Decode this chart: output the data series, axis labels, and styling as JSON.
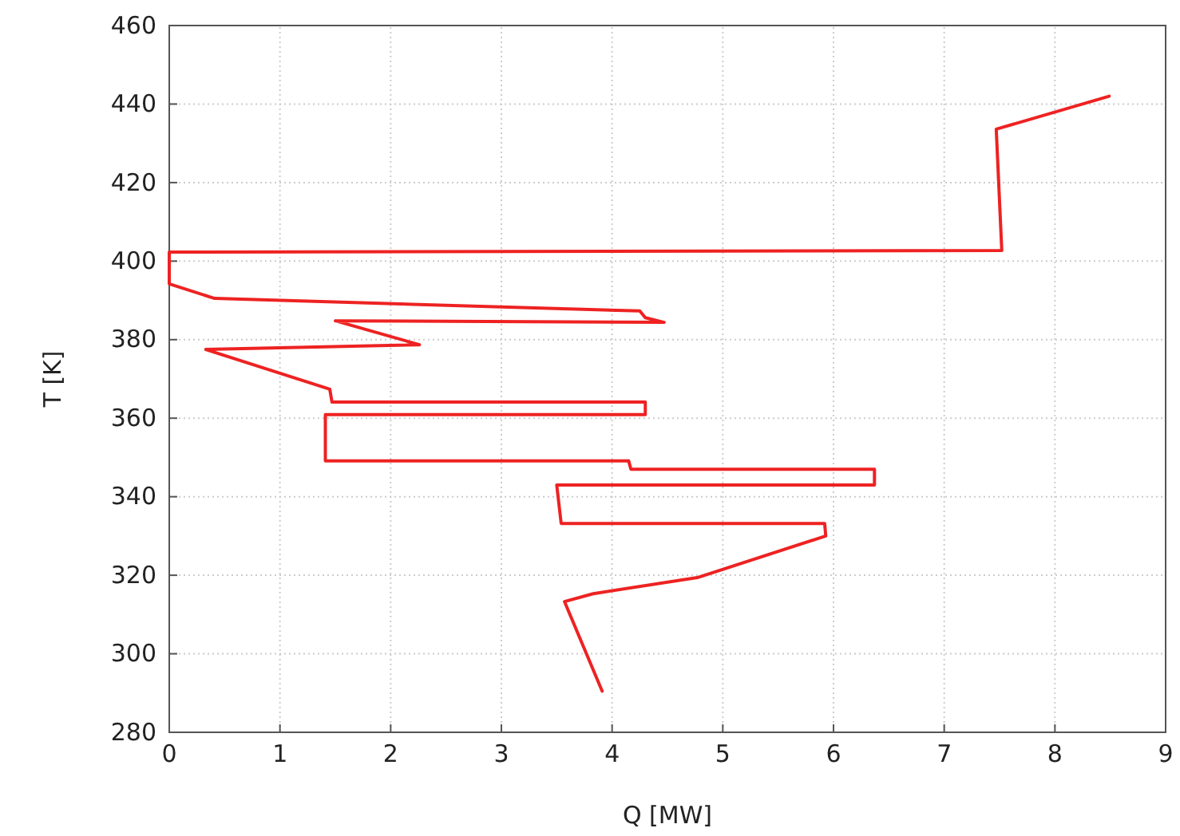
{
  "chart_data": {
    "type": "line",
    "xlabel": "Q [MW]",
    "ylabel": "T [K]",
    "xlim": [
      0,
      9
    ],
    "xticks": [
      0,
      1,
      2,
      3,
      4,
      5,
      6,
      7,
      8,
      9
    ],
    "ylim": [
      280,
      460
    ],
    "yticks": [
      280,
      300,
      320,
      340,
      360,
      380,
      400,
      420,
      440,
      460
    ],
    "grid": true,
    "line_style": "solid",
    "series": [
      {
        "color": "#ee2222",
        "x": [
          8.49,
          7.47,
          7.52,
          0,
          0,
          0.41,
          4.25,
          4.3,
          4.47,
          1.5,
          2.26,
          0.33,
          1.45,
          1.47,
          4.3,
          4.3,
          1.41,
          1.41,
          4.15,
          4.17,
          6.37,
          6.37,
          3.5,
          3.54,
          5.92,
          5.93,
          4.77,
          3.83,
          3.57,
          3.91
        ],
        "values": [
          442,
          433.6,
          402.7,
          402.3,
          394.2,
          390.5,
          387.3,
          385.6,
          384.4,
          384.8,
          378.7,
          377.5,
          367.4,
          364.1,
          364.1,
          360.9,
          360.9,
          349.1,
          349.1,
          347,
          347,
          343,
          343,
          333.2,
          333.2,
          330,
          319.4,
          315.3,
          313.3,
          290.5
        ]
      }
    ]
  }
}
